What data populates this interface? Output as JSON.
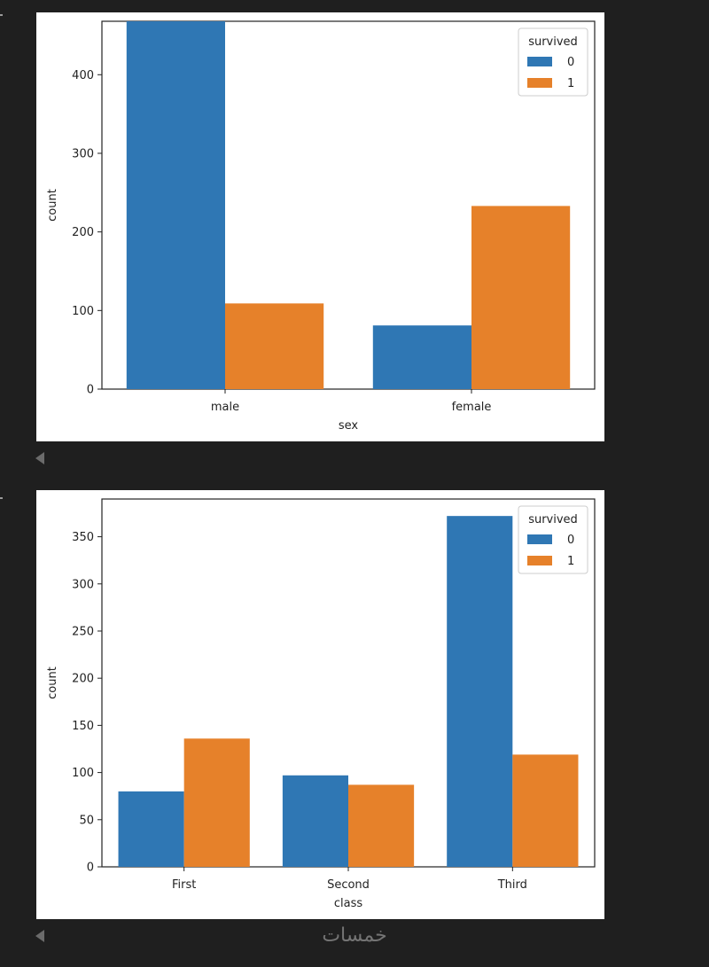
{
  "chart_data": [
    {
      "type": "bar",
      "title": "",
      "xlabel": "sex",
      "ylabel": "count",
      "categories": [
        "male",
        "female"
      ],
      "ylim": [
        0,
        468
      ],
      "yticks": [
        0,
        100,
        200,
        300,
        400
      ],
      "legend": {
        "title": "survived",
        "placement": "top-right"
      },
      "series": [
        {
          "name": "0",
          "color": "#2f77b4",
          "values": [
            468,
            81
          ]
        },
        {
          "name": "1",
          "color": "#e6812a",
          "values": [
            109,
            233
          ]
        }
      ],
      "grid": false
    },
    {
      "type": "bar",
      "title": "",
      "xlabel": "class",
      "ylabel": "count",
      "categories": [
        "First",
        "Second",
        "Third"
      ],
      "ylim": [
        0,
        390
      ],
      "yticks": [
        0,
        50,
        100,
        150,
        200,
        250,
        300,
        350
      ],
      "legend": {
        "title": "survived",
        "placement": "top-right"
      },
      "series": [
        {
          "name": "0",
          "color": "#2f77b4",
          "values": [
            80,
            97,
            372
          ]
        },
        {
          "name": "1",
          "color": "#e6812a",
          "values": [
            136,
            87,
            119
          ]
        }
      ],
      "grid": false
    }
  ],
  "watermark": "خمسات"
}
